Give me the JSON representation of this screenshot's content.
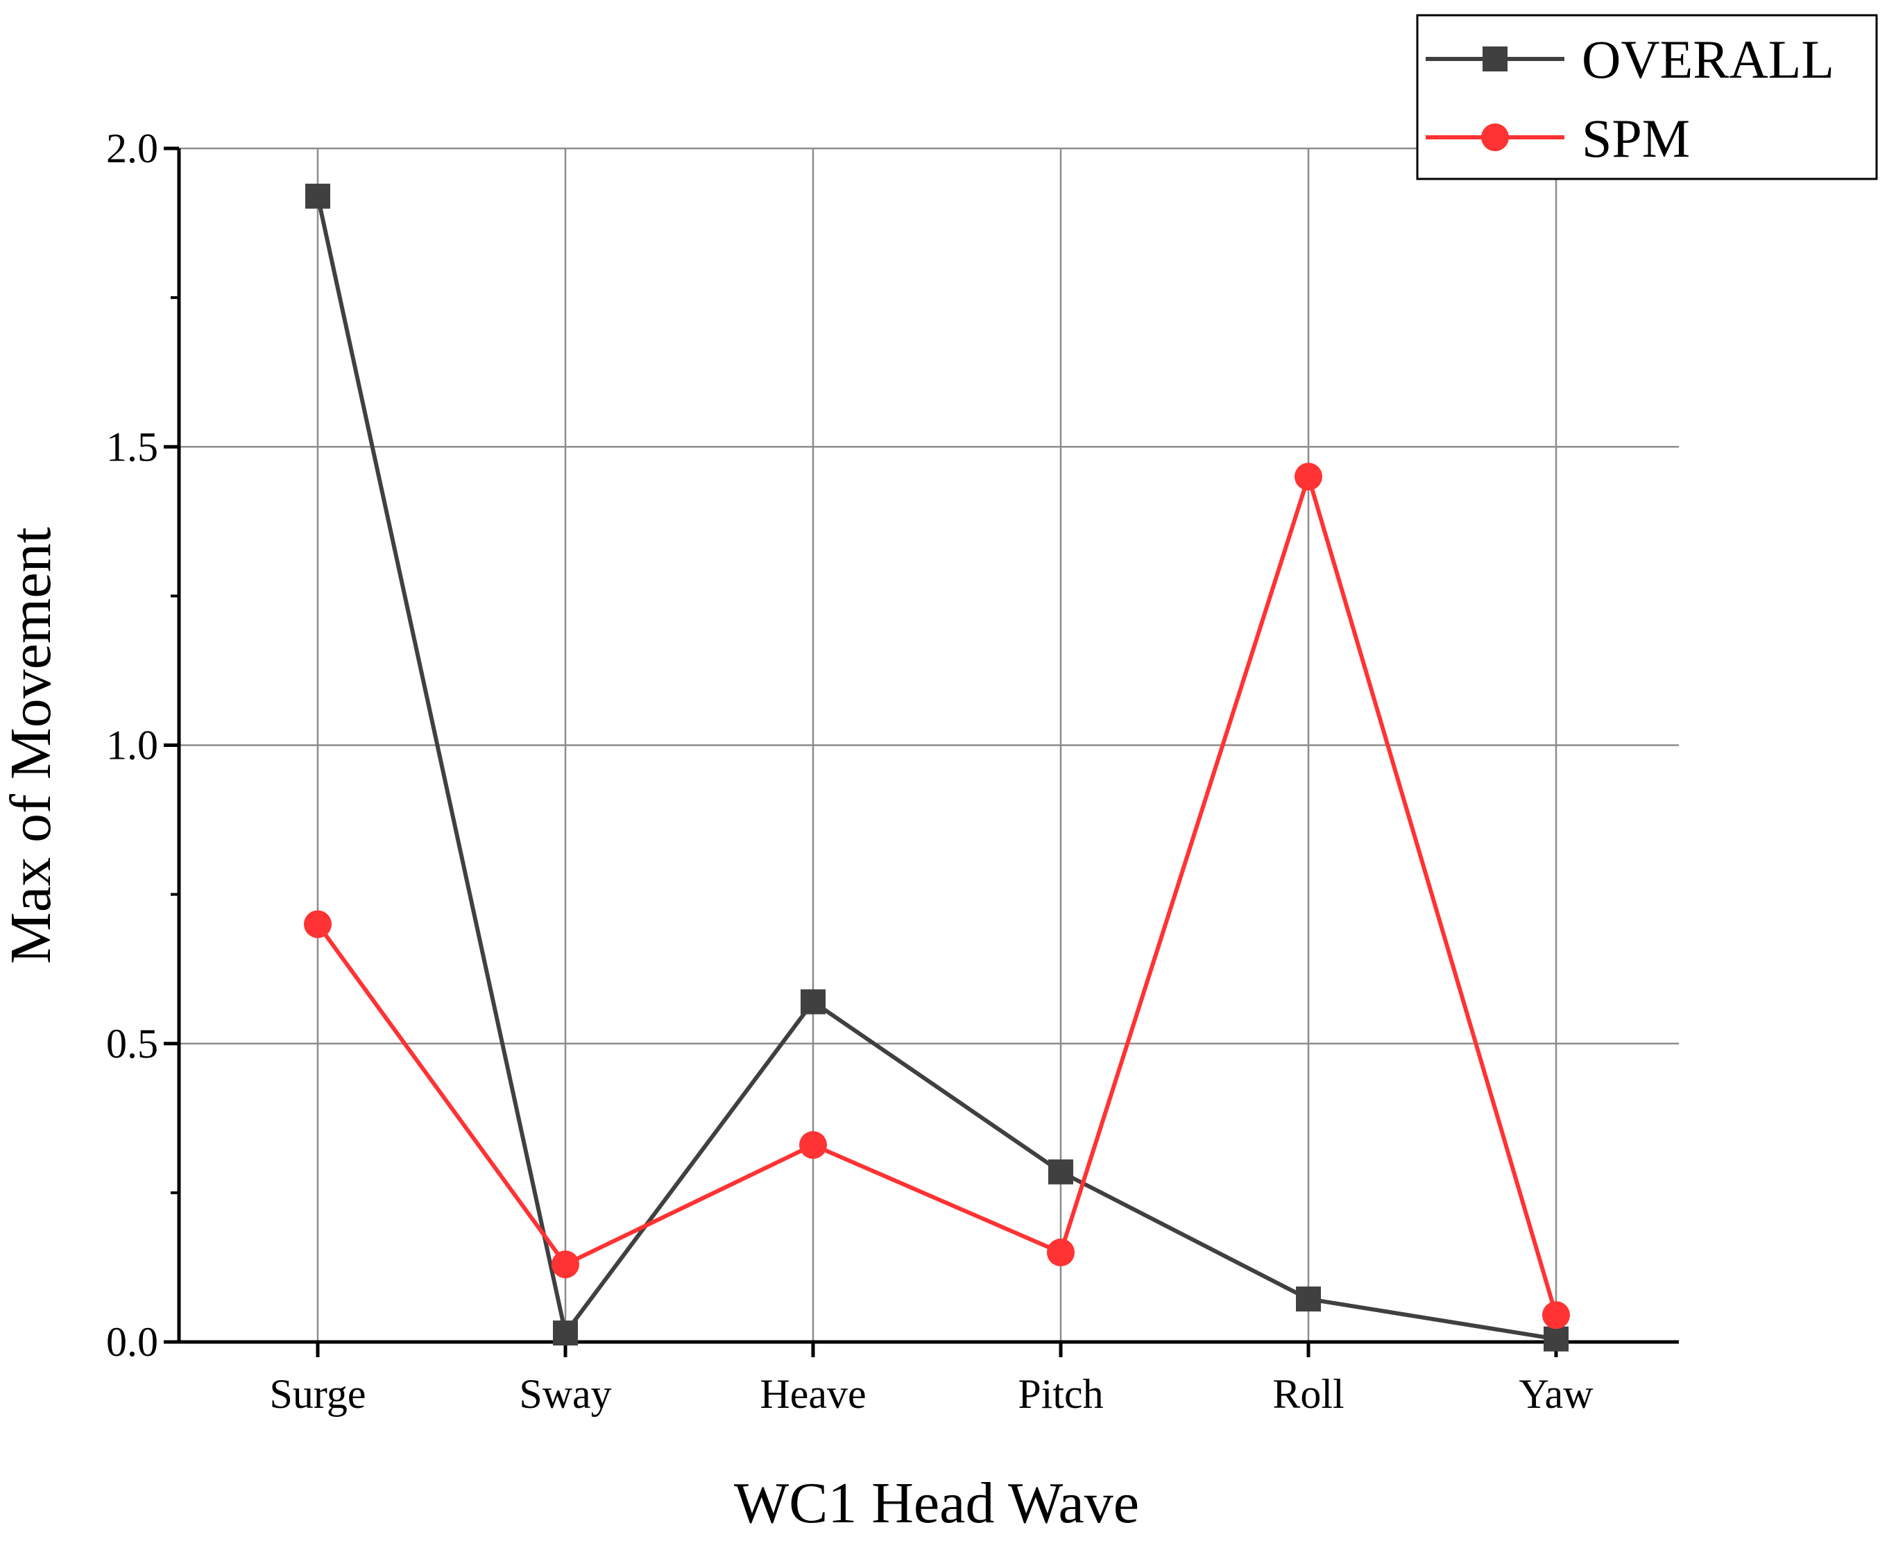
{
  "chart_data": {
    "type": "line",
    "title": "",
    "xlabel": "WC1 Head Wave",
    "ylabel": "Max of Movement",
    "categories": [
      "Surge",
      "Sway",
      "Heave",
      "Pitch",
      "Roll",
      "Yaw"
    ],
    "ylim": [
      0,
      2.0
    ],
    "yticks": [
      0.0,
      0.5,
      1.0,
      1.5,
      2.0
    ],
    "ytick_labels": [
      "0.0",
      "0.5",
      "1.0",
      "1.5",
      "2.0"
    ],
    "grid": true,
    "legend_position": "top-right",
    "series": [
      {
        "name": "OVERALL",
        "color": "#404040",
        "marker": "square",
        "values": [
          1.92,
          0.015,
          0.57,
          0.285,
          0.072,
          0.005
        ]
      },
      {
        "name": "SPM",
        "color": "#ff3333",
        "marker": "circle",
        "values": [
          0.7,
          0.13,
          0.33,
          0.15,
          1.45,
          0.045
        ]
      }
    ]
  }
}
